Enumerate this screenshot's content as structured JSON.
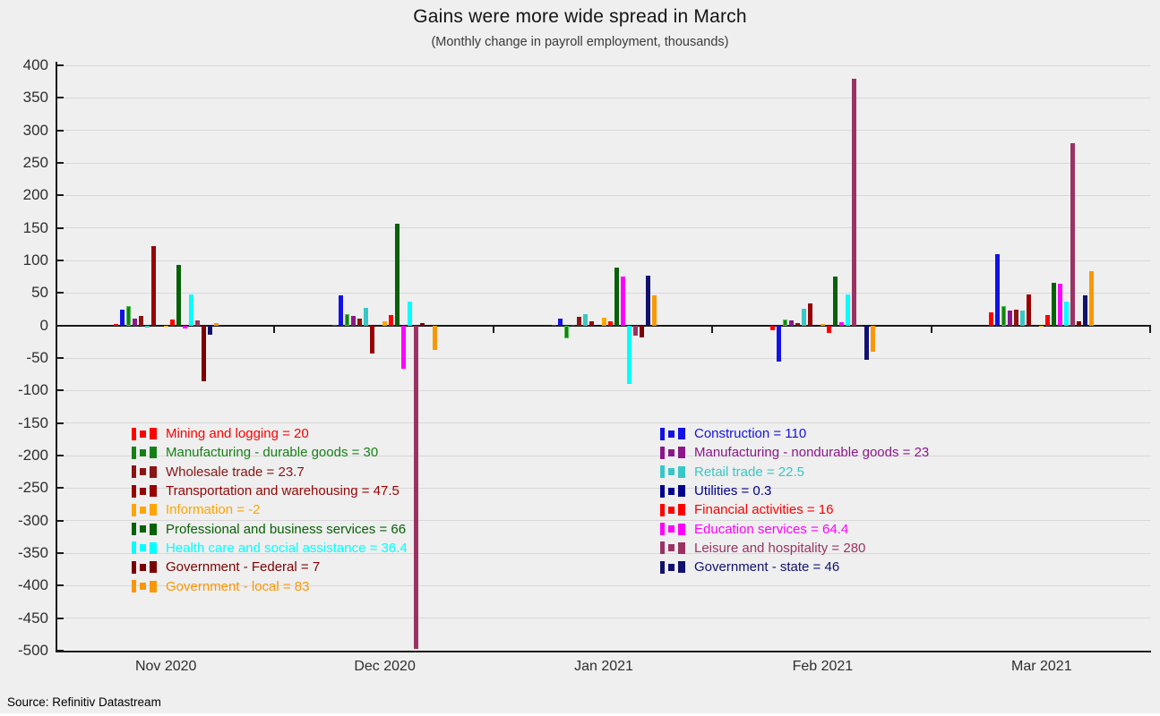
{
  "title": "Gains were more wide spread in March",
  "subtitle": "(Monthly change in payroll employment, thousands)",
  "source_note": "Source: Refinitiv Datastream",
  "colors": {
    "background": "#EFEFEF",
    "gridline": "#D8D8D8",
    "axis": "#1A1A1A",
    "axis_text": "#2E2E2E"
  },
  "axis": {
    "y_ticks": [
      400,
      350,
      300,
      250,
      200,
      150,
      100,
      50,
      0,
      -50,
      -100,
      -150,
      -200,
      -250,
      -300,
      -350,
      -400,
      -450,
      -500
    ],
    "x_labels": [
      "Nov 2020",
      "Dec 2020",
      "Jan 2021",
      "Feb 2021",
      "Mar 2021"
    ]
  },
  "chart_data": {
    "type": "bar",
    "title": "Gains were more wide spread in March",
    "subtitle": "(Monthly change in payroll employment, thousands)",
    "categories": [
      "Nov 2020",
      "Dec 2020",
      "Jan 2021",
      "Feb 2021",
      "Mar 2021"
    ],
    "ylim": [
      -500,
      400
    ],
    "y_tick_step": 50,
    "grid": true,
    "legend_position": "inside-bottom-left, two columns",
    "series": [
      {
        "name": "Mining and logging",
        "legend": "Mining and logging = 20",
        "color": "#FF0000",
        "values": [
          2,
          0.5,
          0.5,
          -8,
          20
        ]
      },
      {
        "name": "Construction",
        "legend": "Construction = 110",
        "color": "#1212E6",
        "values": [
          24,
          46,
          11,
          -56,
          110
        ]
      },
      {
        "name": "Manufacturing - durable goods",
        "legend": "Manufacturing - durable goods = 30",
        "color": "#168016",
        "border": "#4CC24C",
        "values": [
          30,
          17,
          -20,
          9,
          30
        ]
      },
      {
        "name": "Manufacturing - nondurable goods",
        "legend": "Manufacturing - nondurable goods = 23",
        "color": "#8B178B",
        "values": [
          11,
          15,
          0.5,
          8,
          23
        ]
      },
      {
        "name": "Wholesale trade",
        "legend": "Wholesale trade = 23.7",
        "color": "#8B1414",
        "values": [
          14,
          10,
          13,
          4,
          23.7
        ]
      },
      {
        "name": "Retail trade",
        "legend": "Retail trade = 22.5",
        "color": "#38C7C7",
        "values": [
          -3,
          27,
          18,
          26,
          22.5
        ]
      },
      {
        "name": "Transportation and warehousing",
        "legend": "Transportation and warehousing = 47.5",
        "color": "#970303",
        "values": [
          122,
          -43,
          6,
          34,
          47.5
        ]
      },
      {
        "name": "Utilities",
        "legend": "Utilities = 0.3",
        "color": "#00008B",
        "values": [
          0.5,
          0.5,
          0.5,
          0.5,
          0.3
        ]
      },
      {
        "name": "Information",
        "legend": "Information = -2",
        "color": "#FFA500",
        "values": [
          -1,
          7,
          12,
          2,
          -2
        ]
      },
      {
        "name": "Financial activities",
        "legend": "Financial activities = 16",
        "color": "#FF0000",
        "values": [
          9,
          16,
          6,
          -12,
          16
        ]
      },
      {
        "name": "Professional and business services",
        "legend": "Professional and business services = 66",
        "color": "#076107",
        "values": [
          93,
          156,
          89,
          75,
          66
        ]
      },
      {
        "name": "Education services",
        "legend": "Education services = 64.4",
        "color": "#FF00FF",
        "values": [
          -4,
          -67,
          75,
          5,
          64.4
        ]
      },
      {
        "name": "Health care and social assistance",
        "legend": "Health care and social assistance = 36.4",
        "color": "#00FFFF",
        "values": [
          48,
          37,
          -90,
          48,
          36.4
        ]
      },
      {
        "name": "Leisure and hospitality",
        "legend": "Leisure and hospitality = 280",
        "color": "#9A3363",
        "values": [
          8,
          -497,
          -16,
          380,
          280
        ]
      },
      {
        "name": "Government - Federal",
        "legend": "Government - Federal = 7",
        "color": "#7D0000",
        "values": [
          -86,
          3,
          -18,
          0.5,
          7
        ]
      },
      {
        "name": "Government - state",
        "legend": "Government - state = 46",
        "color": "#11116E",
        "values": [
          -14,
          0.5,
          76,
          -53,
          46
        ]
      },
      {
        "name": "Government - local",
        "legend": "Government - local = 83",
        "color": "#F99806",
        "values": [
          4,
          -37,
          47,
          -40,
          83
        ]
      }
    ]
  }
}
